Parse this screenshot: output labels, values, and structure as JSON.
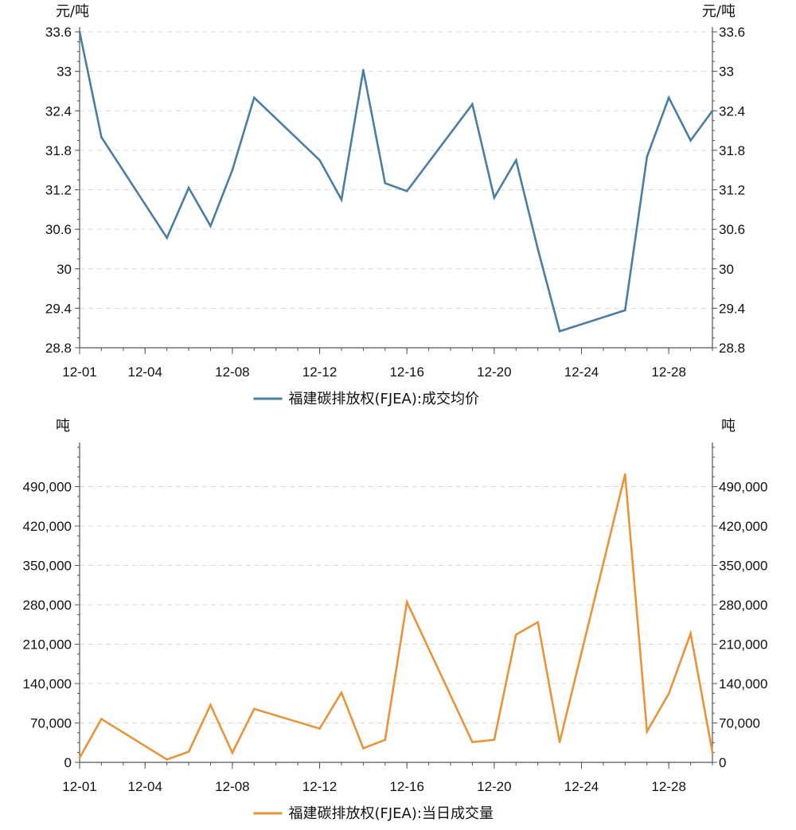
{
  "chart_data": [
    {
      "type": "line",
      "title": "",
      "xlabel": "",
      "ylabel": "元/吨",
      "y_unit_left": "元/吨",
      "y_unit_right": "元/吨",
      "x": [
        "12-01",
        "12-02",
        "12-05",
        "12-06",
        "12-07",
        "12-08",
        "12-09",
        "12-12",
        "12-13",
        "12-14",
        "12-15",
        "12-16",
        "12-19",
        "12-20",
        "12-21",
        "12-22",
        "12-23",
        "12-26",
        "12-27",
        "12-28",
        "12-29",
        "12-30"
      ],
      "x_ticks": [
        "12-01",
        "12-04",
        "12-08",
        "12-12",
        "12-16",
        "12-20",
        "12-24",
        "12-28"
      ],
      "series": [
        {
          "name": "福建碳排放权(FJEA):成交均价",
          "color": "#4a7ea5",
          "values": [
            33.6,
            32.0,
            30.47,
            31.23,
            30.65,
            31.5,
            32.6,
            31.65,
            31.05,
            33.02,
            31.3,
            31.18,
            32.5,
            31.08,
            31.65,
            30.3,
            29.05,
            29.37,
            31.7,
            32.6,
            31.95,
            32.4
          ]
        }
      ],
      "ylim": [
        28.8,
        33.6
      ],
      "y_ticks": [
        "28.8",
        "29.4",
        "30",
        "30.6",
        "31.2",
        "31.8",
        "32.4",
        "33",
        "33.6"
      ],
      "legend": "bottom-center",
      "grid": true
    },
    {
      "type": "line",
      "title": "",
      "xlabel": "",
      "ylabel": "吨",
      "y_unit_left": "吨",
      "y_unit_right": "吨",
      "x": [
        "12-01",
        "12-02",
        "12-05",
        "12-06",
        "12-07",
        "12-08",
        "12-09",
        "12-12",
        "12-13",
        "12-14",
        "12-15",
        "12-16",
        "12-19",
        "12-20",
        "12-21",
        "12-22",
        "12-23",
        "12-26",
        "12-27",
        "12-28",
        "12-29",
        "12-30"
      ],
      "x_ticks": [
        "12-01",
        "12-04",
        "12-08",
        "12-12",
        "12-16",
        "12-20",
        "12-24",
        "12-28"
      ],
      "series": [
        {
          "name": "福建碳排放权(FJEA):当日成交量",
          "color": "#e8943a",
          "values": [
            8000,
            77000,
            5000,
            19000,
            102000,
            17000,
            95000,
            60000,
            124000,
            25000,
            40000,
            285000,
            36000,
            40000,
            227000,
            249000,
            36000,
            512000,
            55000,
            122000,
            229000,
            18000
          ]
        }
      ],
      "ylim": [
        0,
        560000
      ],
      "y_ticks": [
        "0",
        "70,000",
        "140,000",
        "210,000",
        "280,000",
        "350,000",
        "420,000",
        "490,000"
      ],
      "legend": "bottom-center",
      "grid": true
    }
  ]
}
